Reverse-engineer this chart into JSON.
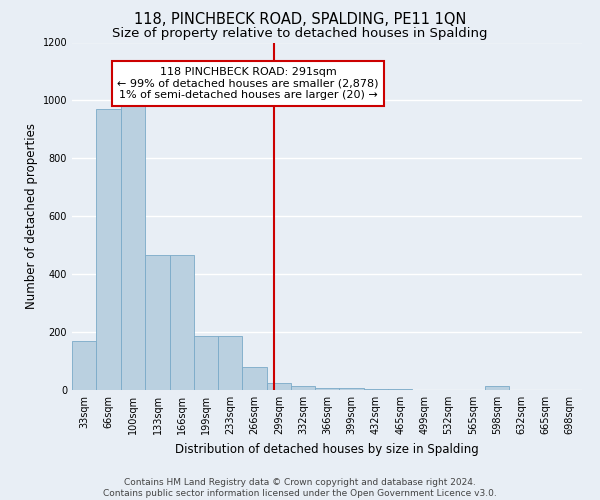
{
  "title": "118, PINCHBECK ROAD, SPALDING, PE11 1QN",
  "subtitle": "Size of property relative to detached houses in Spalding",
  "xlabel": "Distribution of detached houses by size in Spalding",
  "ylabel": "Number of detached properties",
  "footer_line1": "Contains HM Land Registry data © Crown copyright and database right 2024.",
  "footer_line2": "Contains public sector information licensed under the Open Government Licence v3.0.",
  "annotation_title": "118 PINCHBECK ROAD: 291sqm",
  "annotation_line1": "← 99% of detached houses are smaller (2,878)",
  "annotation_line2": "1% of semi-detached houses are larger (20) →",
  "property_size": 291,
  "bar_labels": [
    "33sqm",
    "66sqm",
    "100sqm",
    "133sqm",
    "166sqm",
    "199sqm",
    "233sqm",
    "266sqm",
    "299sqm",
    "332sqm",
    "366sqm",
    "399sqm",
    "432sqm",
    "465sqm",
    "499sqm",
    "532sqm",
    "565sqm",
    "598sqm",
    "632sqm",
    "665sqm",
    "698sqm"
  ],
  "bar_values": [
    170,
    970,
    995,
    465,
    465,
    185,
    185,
    80,
    25,
    15,
    8,
    8,
    5,
    5,
    0,
    0,
    0,
    15,
    0,
    0,
    0
  ],
  "bar_edges": [
    16,
    49,
    83,
    116,
    149,
    182,
    215,
    248,
    281,
    314,
    347,
    380,
    413,
    446,
    479,
    512,
    545,
    578,
    611,
    644,
    677,
    710
  ],
  "bin_width": 33,
  "bar_color": "#bad0e0",
  "bar_edge_color": "#7aaac8",
  "vline_x": 291,
  "vline_color": "#cc0000",
  "annotation_box_color": "#cc0000",
  "background_color": "#e8eef5",
  "ylim": [
    0,
    1200
  ],
  "yticks": [
    0,
    200,
    400,
    600,
    800,
    1000,
    1200
  ],
  "grid_color": "#ffffff",
  "title_fontsize": 10.5,
  "subtitle_fontsize": 9.5,
  "axis_label_fontsize": 8.5,
  "tick_fontsize": 7,
  "annotation_fontsize": 8,
  "footer_fontsize": 6.5
}
